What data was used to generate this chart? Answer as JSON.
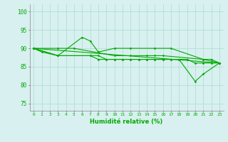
{
  "x": [
    0,
    1,
    2,
    3,
    4,
    5,
    6,
    7,
    8,
    9,
    10,
    11,
    12,
    13,
    14,
    15,
    16,
    17,
    18,
    19,
    20,
    21,
    22,
    23
  ],
  "series1": [
    90,
    89,
    null,
    88,
    null,
    null,
    93,
    92,
    89,
    null,
    90,
    null,
    90,
    null,
    null,
    90,
    null,
    90,
    null,
    null,
    null,
    87,
    87,
    86
  ],
  "series2": [
    90,
    null,
    null,
    90,
    null,
    90,
    null,
    null,
    null,
    null,
    88,
    null,
    88,
    null,
    88,
    88,
    88,
    null,
    null,
    null,
    null,
    87,
    null,
    86
  ],
  "series3": [
    90,
    null,
    null,
    88,
    null,
    null,
    null,
    88,
    88,
    87,
    87,
    87,
    87,
    87,
    87,
    87,
    87,
    87,
    87,
    87,
    86,
    86,
    86,
    86
  ],
  "series4_x": [
    0,
    23
  ],
  "series4_y": [
    90,
    86
  ],
  "series5": [
    90,
    null,
    null,
    88,
    null,
    null,
    null,
    88,
    87,
    87,
    87,
    87,
    87,
    87,
    87,
    87,
    87,
    87,
    87,
    null,
    81,
    83,
    null,
    86
  ],
  "line_color": "#00aa00",
  "bg_color": "#d8f0f0",
  "grid_color": "#aaddcc",
  "xlabel": "Humidité relative (%)",
  "ylim": [
    73,
    102
  ],
  "xlim": [
    -0.5,
    23.5
  ],
  "yticks": [
    75,
    80,
    85,
    90,
    95,
    100
  ],
  "xticks": [
    0,
    1,
    2,
    3,
    4,
    5,
    6,
    7,
    8,
    9,
    10,
    11,
    12,
    13,
    14,
    15,
    16,
    17,
    18,
    19,
    20,
    21,
    22,
    23
  ]
}
